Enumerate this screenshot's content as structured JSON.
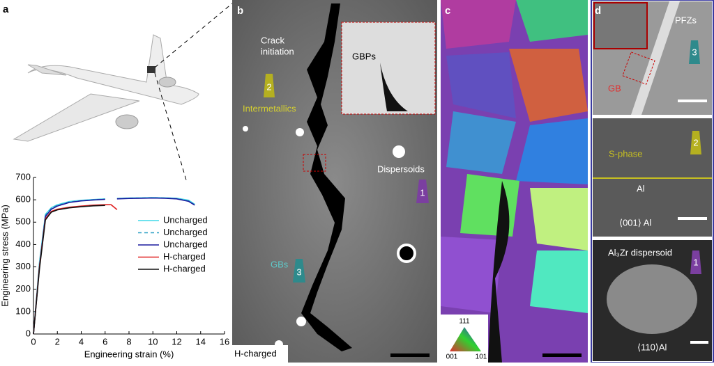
{
  "chart_data": {
    "type": "line",
    "panel": "a",
    "xlabel": "Engineering strain (%)",
    "ylabel": "Engineering stress (MPa)",
    "x": [
      0,
      0.5,
      1,
      1.5,
      2,
      3,
      4,
      5,
      6,
      6.5,
      7,
      8,
      9,
      10,
      11,
      12,
      13,
      13.5
    ],
    "xlim": [
      0,
      16
    ],
    "xticks": [
      0,
      2,
      4,
      6,
      8,
      10,
      12,
      14,
      16
    ],
    "ylim": [
      0,
      700
    ],
    "yticks": [
      0,
      100,
      200,
      300,
      400,
      500,
      600,
      700
    ],
    "series": [
      {
        "name": "Uncharged",
        "color": "#3fd8e8",
        "dash": false,
        "values": [
          0,
          320,
          535,
          565,
          578,
          592,
          598,
          601,
          604,
          null,
          606,
          608,
          609,
          610,
          609,
          607,
          598,
          580
        ]
      },
      {
        "name": "Uncharged",
        "color": "#2a9fc4",
        "dash": true,
        "values": [
          0,
          310,
          530,
          562,
          575,
          590,
          596,
          600,
          603,
          null,
          605,
          607,
          608,
          609,
          608,
          605,
          595,
          578
        ]
      },
      {
        "name": "Uncharged",
        "color": "#1a1a9e",
        "dash": false,
        "values": [
          0,
          300,
          525,
          558,
          572,
          588,
          595,
          599,
          602,
          null,
          604,
          606,
          607,
          608,
          607,
          604,
          593,
          576
        ]
      },
      {
        "name": "H-charged",
        "color": "#e02020",
        "dash": false,
        "values": [
          0,
          300,
          515,
          548,
          558,
          567,
          572,
          576,
          578,
          578,
          556,
          null,
          null,
          null,
          null,
          null,
          null,
          null
        ]
      },
      {
        "name": "H-charged",
        "color": "#111111",
        "dash": false,
        "values": [
          0,
          290,
          510,
          545,
          555,
          564,
          569,
          573,
          575,
          null,
          null,
          null,
          null,
          null,
          null,
          null,
          null,
          null
        ]
      }
    ]
  },
  "panel_b": {
    "letter": "b",
    "crack": "Crack",
    "initiation": "initiation",
    "gbps": "GBPs",
    "badge_2": "2",
    "intermetallics": "Intermetallics",
    "dispersoids": "Dispersoids",
    "badge_1": "1",
    "gbs": "GBs",
    "badge_3": "3",
    "condition": "H-charged"
  },
  "panel_c": {
    "letter": "c",
    "key_top": "111",
    "key_left": "001",
    "key_right": "101"
  },
  "panel_d": {
    "letter": "d",
    "pfzs": "PFZs",
    "badge_3": "3",
    "gb": "GB",
    "badge_2": "2",
    "sphase": "S-phase",
    "al": "Al",
    "zone_001": "⟨001⟩ Al",
    "dispersoid": "Al₃Zr dispersoid",
    "badge_1": "1",
    "zone_110": "⟨110⟩Al"
  }
}
